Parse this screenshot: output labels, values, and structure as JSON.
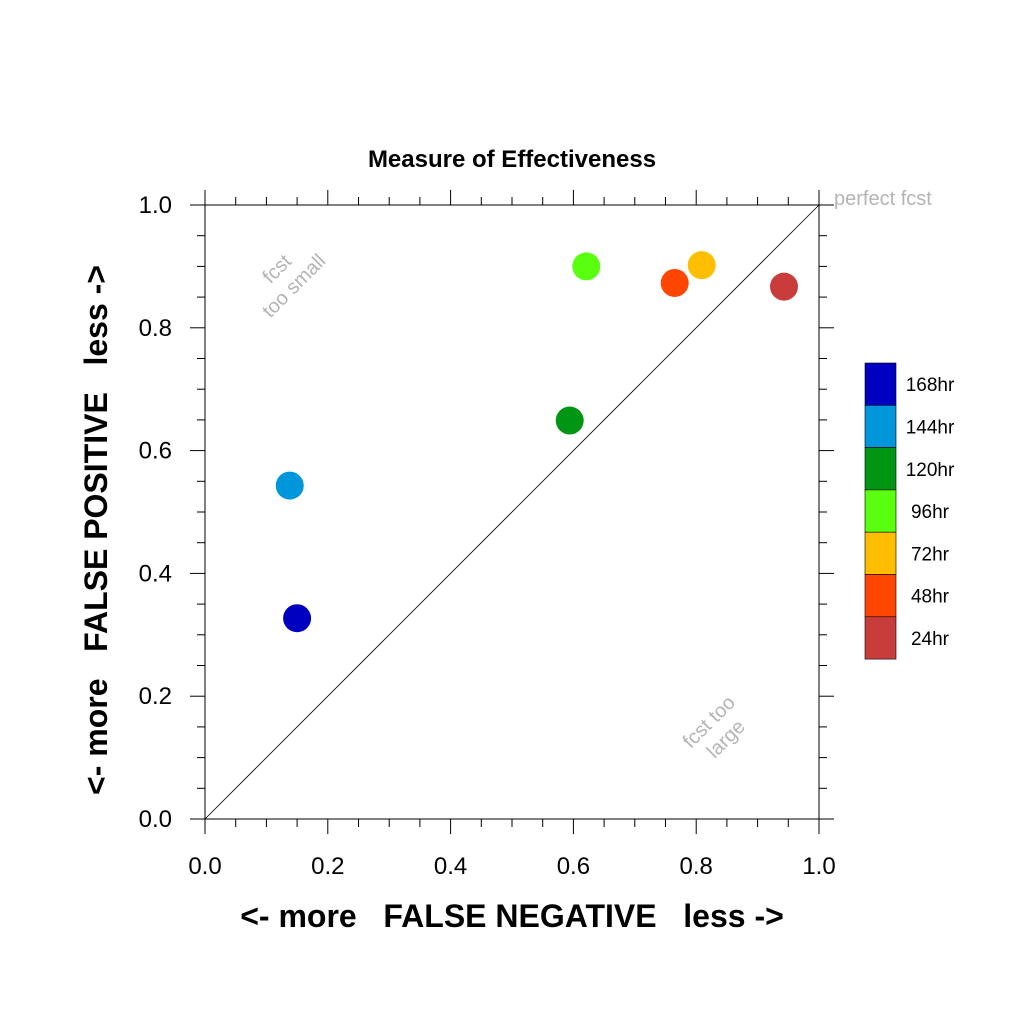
{
  "chart_data": {
    "type": "scatter",
    "title": "Measure of Effectiveness",
    "xlabel": "<- more   FALSE NEGATIVE   less ->",
    "ylabel": "<- more   FALSE POSITIVE   less ->",
    "xlim": [
      0.0,
      1.0
    ],
    "ylim": [
      0.0,
      1.0
    ],
    "x_ticks": [
      "0.0",
      "0.2",
      "0.4",
      "0.6",
      "0.8",
      "1.0"
    ],
    "y_ticks": [
      "0.0",
      "0.2",
      "0.4",
      "0.6",
      "0.8",
      "1.0"
    ],
    "grid": false,
    "reference_line": "diagonal",
    "legend_position": "right",
    "series": [
      {
        "name": "168hr",
        "color": "#0000c0",
        "x": 0.15,
        "y": 0.327
      },
      {
        "name": "144hr",
        "color": "#0096dc",
        "x": 0.138,
        "y": 0.543
      },
      {
        "name": "120hr",
        "color": "#009614",
        "x": 0.594,
        "y": 0.649
      },
      {
        "name": "96hr",
        "color": "#5aff0f",
        "x": 0.621,
        "y": 0.9
      },
      {
        "name": "72hr",
        "color": "#ffbe00",
        "x": 0.809,
        "y": 0.902
      },
      {
        "name": "48hr",
        "color": "#ff4600",
        "x": 0.765,
        "y": 0.873
      },
      {
        "name": "24hr",
        "color": "#c83c3c",
        "x": 0.943,
        "y": 0.867
      }
    ],
    "annotations": {
      "perfect": "perfect fcst",
      "too_small_1": "fcst",
      "too_small_2": "too small",
      "too_large_1": "fcst too",
      "too_large_2": "large"
    }
  }
}
